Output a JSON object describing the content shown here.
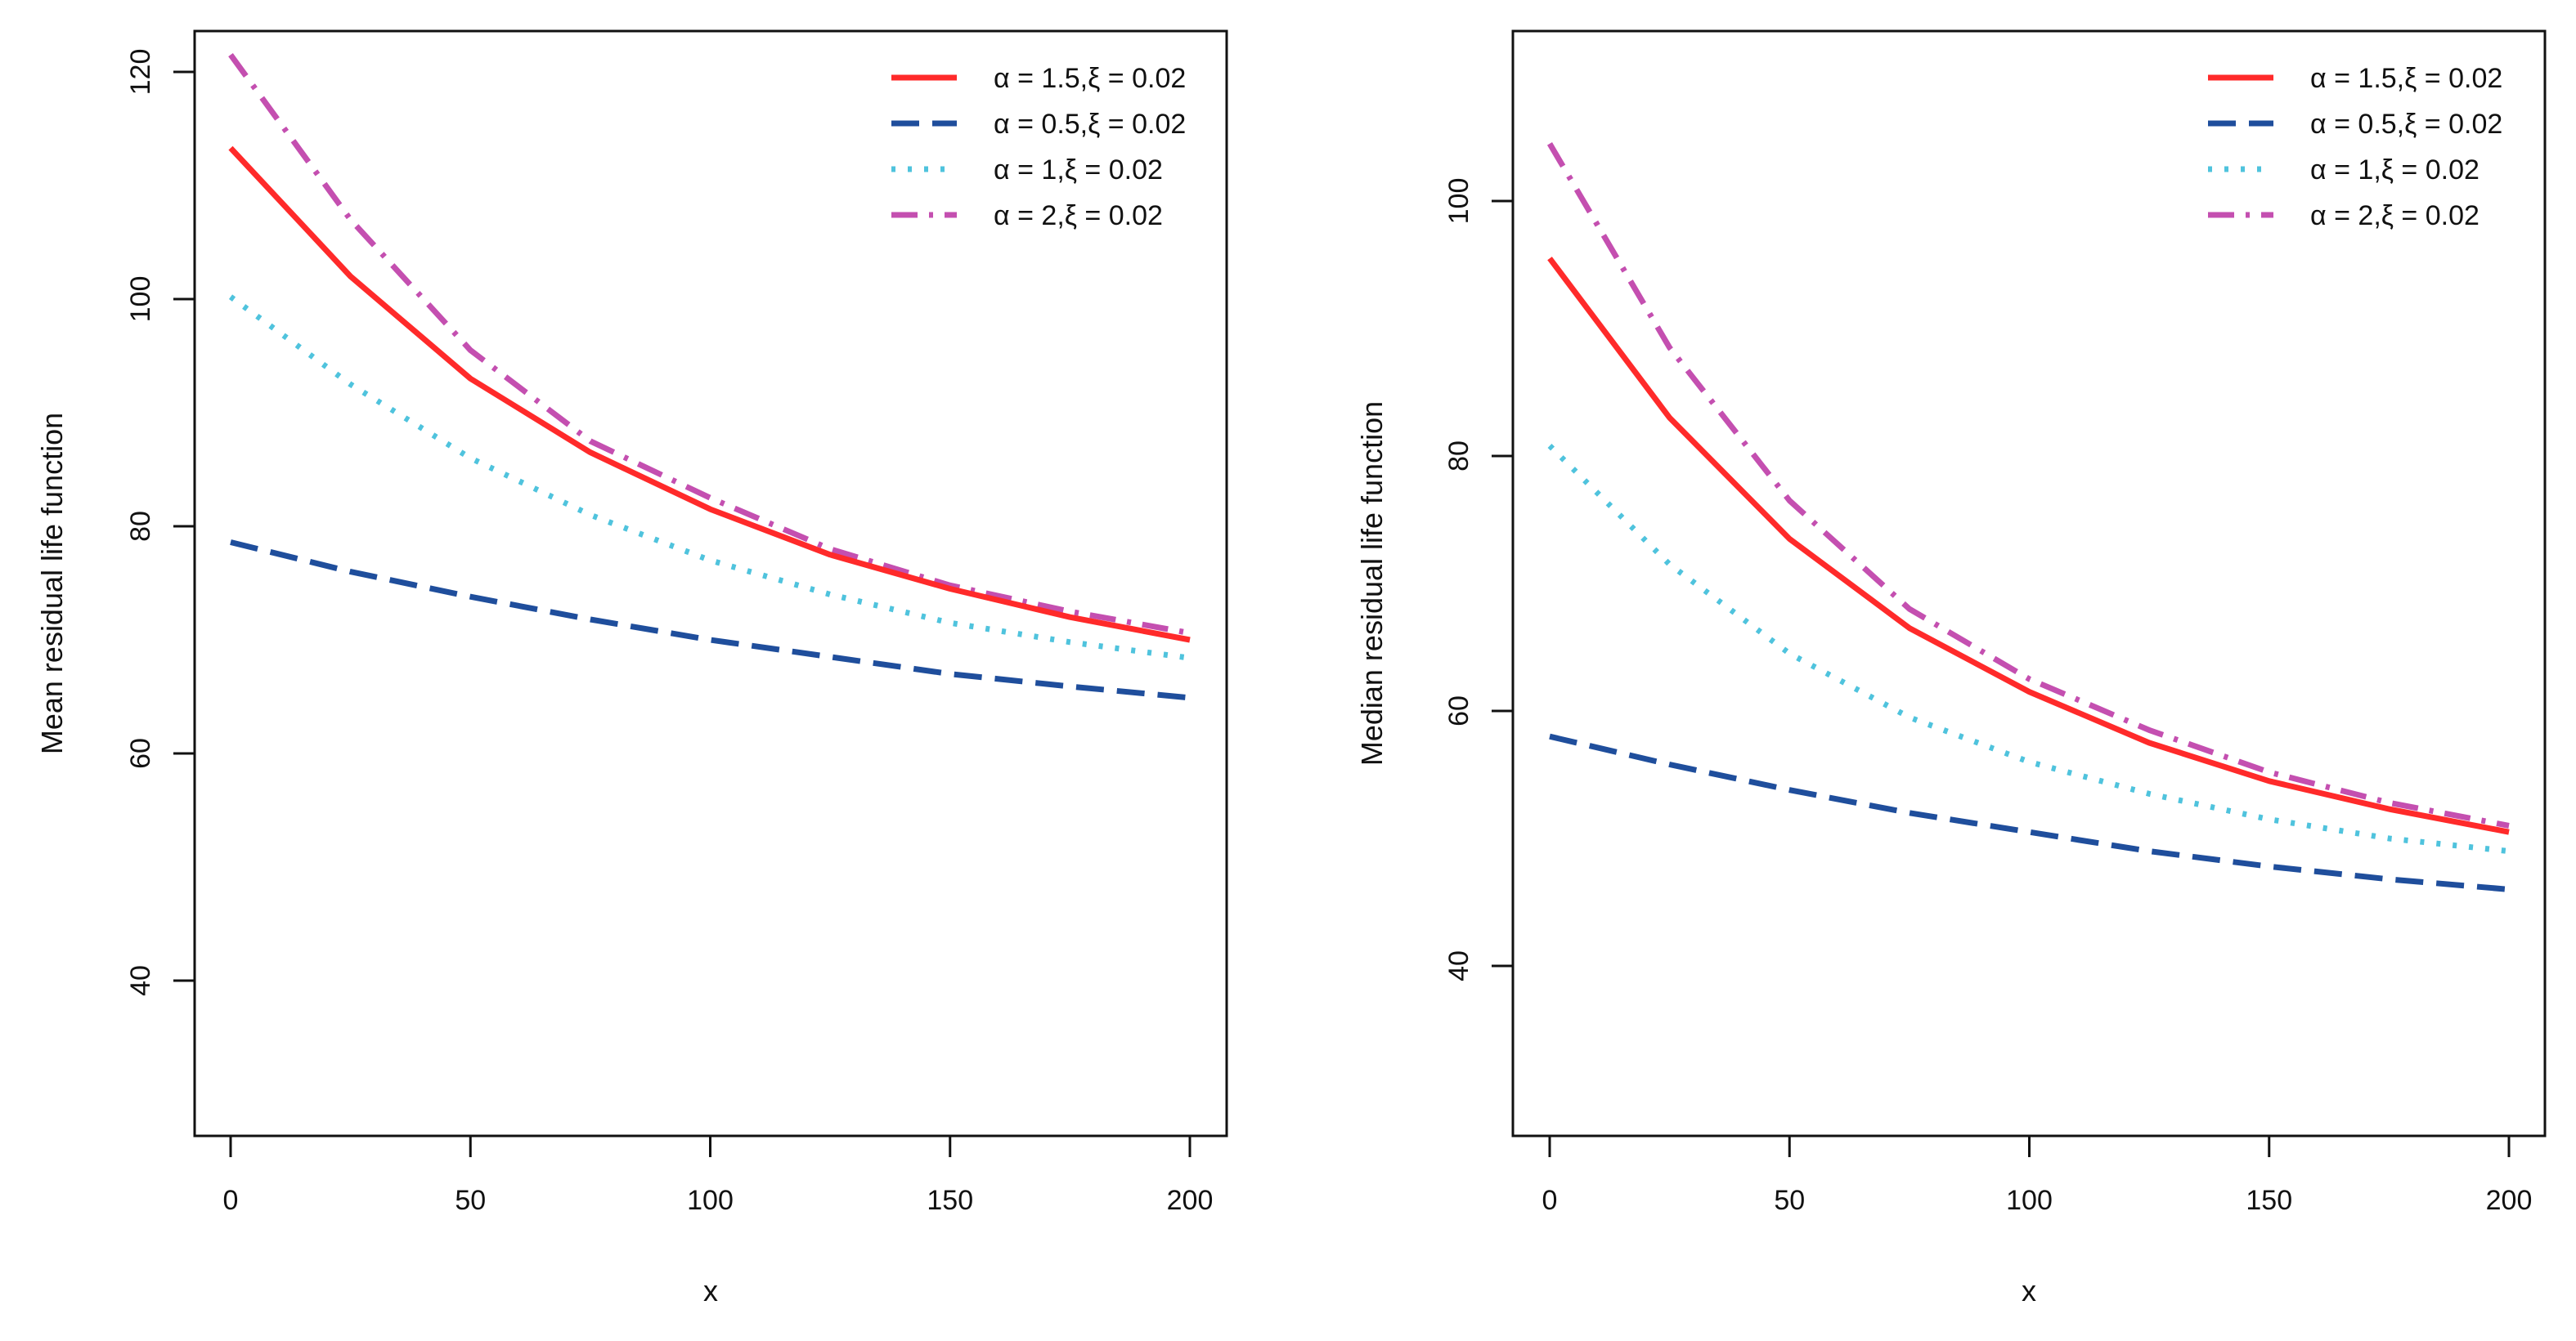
{
  "chart_data": [
    {
      "type": "line",
      "xlabel": "x",
      "ylabel": "Mean residual life function",
      "xlim": [
        0,
        200
      ],
      "ylim": [
        27,
        125
      ],
      "xticks": [
        "0",
        "50",
        "100",
        "150",
        "200"
      ],
      "yticks": [
        "40",
        "60",
        "80",
        "100",
        "120"
      ],
      "legend_position": "top-right",
      "x": [
        0,
        25,
        50,
        75,
        100,
        125,
        150,
        175,
        200
      ],
      "series": [
        {
          "name": "α = 1.5,ξ = 0.02",
          "color": "#ff2a2a",
          "style": "solid",
          "values": [
            113.3,
            102.0,
            93.0,
            86.5,
            81.5,
            77.5,
            74.5,
            72.0,
            70.0
          ]
        },
        {
          "name": "α = 0.5,ξ = 0.02",
          "color": "#1f4e9c",
          "style": "dashed",
          "values": [
            78.6,
            76.0,
            73.8,
            71.8,
            70.0,
            68.5,
            67.0,
            65.9,
            64.9
          ]
        },
        {
          "name": "α = 1,ξ = 0.02",
          "color": "#4fc3dd",
          "style": "dotted",
          "values": [
            100.2,
            92.5,
            86.0,
            81.0,
            77.0,
            74.0,
            71.5,
            69.8,
            68.4
          ]
        },
        {
          "name": "α = 2,ξ = 0.02",
          "color": "#c44fb0",
          "style": "dashdot",
          "values": [
            121.5,
            107.0,
            95.5,
            87.5,
            82.5,
            78.0,
            74.8,
            72.5,
            70.6
          ]
        }
      ]
    },
    {
      "type": "line",
      "xlabel": "x",
      "ylabel": "Median residual life function",
      "xlim": [
        0,
        200
      ],
      "ylim": [
        27,
        114
      ],
      "xticks": [
        "0",
        "50",
        "100",
        "150",
        "200"
      ],
      "yticks": [
        "40",
        "60",
        "80",
        "100"
      ],
      "legend_position": "top-right",
      "x": [
        0,
        25,
        50,
        75,
        100,
        125,
        150,
        175,
        200
      ],
      "series": [
        {
          "name": "α = 1.5,ξ = 0.02",
          "color": "#ff2a2a",
          "style": "solid",
          "values": [
            95.5,
            83.0,
            73.5,
            66.5,
            61.5,
            57.5,
            54.5,
            52.3,
            50.5
          ]
        },
        {
          "name": "α = 0.5,ξ = 0.02",
          "color": "#1f4e9c",
          "style": "dashed",
          "values": [
            58.0,
            55.8,
            53.8,
            52.0,
            50.5,
            49.0,
            47.8,
            46.8,
            46.0
          ]
        },
        {
          "name": "α = 1,ξ = 0.02",
          "color": "#4fc3dd",
          "style": "dotted",
          "values": [
            80.8,
            71.5,
            64.5,
            59.5,
            56.0,
            53.5,
            51.5,
            50.0,
            49.0
          ]
        },
        {
          "name": "α = 2,ξ = 0.02",
          "color": "#c44fb0",
          "style": "dashdot",
          "values": [
            104.5,
            88.5,
            76.5,
            68.0,
            62.5,
            58.5,
            55.2,
            52.8,
            51.0
          ]
        }
      ]
    }
  ]
}
